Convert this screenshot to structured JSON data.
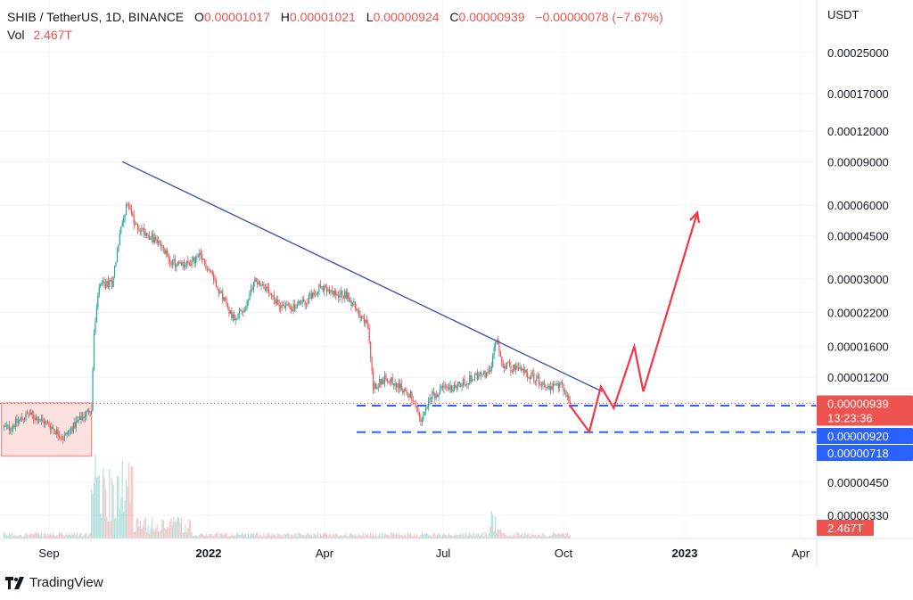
{
  "header": {
    "symbol": "SHIB / TetherUS, 1D, BINANCE",
    "o_label": "O",
    "o_value": "0.00001017",
    "h_label": "H",
    "h_value": "0.00001021",
    "l_label": "L",
    "l_value": "0.00000924",
    "c_label": "C",
    "c_value": "0.00000939",
    "change": "−0.00000078 (−7.67%)",
    "vol_label": "Vol",
    "vol_value": "2.467T"
  },
  "logo": {
    "text": "TradingView",
    "icon": "tradingview-logo-icon"
  },
  "colors": {
    "up": "#26a69a",
    "down": "#ef5350",
    "trend": "#3949ab",
    "support": "#2962ff",
    "projection": "#f23645",
    "range_fill": "#fbe0e0",
    "range_border": "#ef9a9a"
  },
  "chart_data": {
    "type": "candlestick",
    "yscale": "log",
    "y_unit": "USDT",
    "y_ticks": [
      "0.00025000",
      "0.00017000",
      "0.00012000",
      "0.00009000",
      "0.00006000",
      "0.00004500",
      "0.00003000",
      "0.00002200",
      "0.00001600",
      "0.00001200",
      "0.00000450",
      "0.00000330"
    ],
    "x_ticks": [
      "Sep",
      "2022",
      "Apr",
      "Jul",
      "Oct",
      "2023",
      "Apr"
    ],
    "price_tags": [
      {
        "value": "0.00000939",
        "sub": "13:23:36",
        "color": "#ef5350"
      },
      {
        "value": "0.00000920",
        "color": "#2962ff"
      },
      {
        "value": "0.00000718",
        "color": "#2962ff"
      },
      {
        "value": "2.467T",
        "color": "#ef5350"
      }
    ],
    "price_path": [
      [
        "2021-08-01",
        7.5e-06
      ],
      [
        "2021-08-16",
        8.5e-06
      ],
      [
        "2021-09-01",
        7.7e-06
      ],
      [
        "2021-09-12",
        6.8e-06
      ],
      [
        "2021-09-22",
        7.8e-06
      ],
      [
        "2021-10-04",
        9e-06
      ],
      [
        "2021-10-06",
        1.8e-05
      ],
      [
        "2021-10-10",
        2.8e-05
      ],
      [
        "2021-10-20",
        2.9e-05
      ],
      [
        "2021-10-26",
        4.5e-05
      ],
      [
        "2021-10-29",
        5.5e-05
      ],
      [
        "2021-11-02",
        6.2e-05
      ],
      [
        "2021-11-06",
        5e-05
      ],
      [
        "2021-11-14",
        4.7e-05
      ],
      [
        "2021-11-25",
        4.2e-05
      ],
      [
        "2021-12-06",
        3.5e-05
      ],
      [
        "2021-12-15",
        3.4e-05
      ],
      [
        "2021-12-27",
        3.7e-05
      ],
      [
        "2022-01-05",
        3.2e-05
      ],
      [
        "2022-01-10",
        2.8e-05
      ],
      [
        "2022-01-22",
        2.1e-05
      ],
      [
        "2022-02-01",
        2.3e-05
      ],
      [
        "2022-02-08",
        3e-05
      ],
      [
        "2022-02-15",
        2.8e-05
      ],
      [
        "2022-02-24",
        2.4e-05
      ],
      [
        "2022-03-10",
        2.3e-05
      ],
      [
        "2022-03-22",
        2.5e-05
      ],
      [
        "2022-03-30",
        2.8e-05
      ],
      [
        "2022-04-10",
        2.6e-05
      ],
      [
        "2022-04-20",
        2.6e-05
      ],
      [
        "2022-04-30",
        2.2e-05
      ],
      [
        "2022-05-07",
        1.9e-05
      ],
      [
        "2022-05-11",
        1.1e-05
      ],
      [
        "2022-05-22",
        1.2e-05
      ],
      [
        "2022-05-31",
        1.1e-05
      ],
      [
        "2022-06-10",
        1e-05
      ],
      [
        "2022-06-17",
        7.8e-06
      ],
      [
        "2022-06-25",
        1e-05
      ],
      [
        "2022-07-05",
        1.08e-05
      ],
      [
        "2022-07-15",
        1.1e-05
      ],
      [
        "2022-07-28",
        1.2e-05
      ],
      [
        "2022-08-10",
        1.25e-05
      ],
      [
        "2022-08-14",
        1.7e-05
      ],
      [
        "2022-08-20",
        1.35e-05
      ],
      [
        "2022-09-05",
        1.27e-05
      ],
      [
        "2022-09-15",
        1.18e-05
      ],
      [
        "2022-09-26",
        1.08e-05
      ],
      [
        "2022-10-05",
        1.12e-05
      ],
      [
        "2022-10-11",
        9.39e-06
      ]
    ],
    "trendline": [
      [
        "2021-10-28",
        9e-05
      ],
      [
        "2022-11-05",
        1.05e-05
      ]
    ],
    "support_levels": [
      9.2e-06,
      7.18e-06
    ],
    "projection": [
      [
        "2022-10-11",
        9.2e-06
      ],
      [
        "2022-10-26",
        7.2e-06
      ],
      [
        "2022-11-04",
        1.1e-05
      ],
      [
        "2022-11-14",
        9e-06
      ],
      [
        "2022-11-30",
        1.6e-05
      ],
      [
        "2022-12-07",
        1.05e-05
      ],
      [
        "2023-01-18",
        5.6e-05
      ]
    ],
    "range_box": {
      "from": "2021-07-26",
      "to": "2021-10-04",
      "low": 7.5e-06,
      "high": 9.2e-06
    },
    "last_price": 9.39e-06
  }
}
